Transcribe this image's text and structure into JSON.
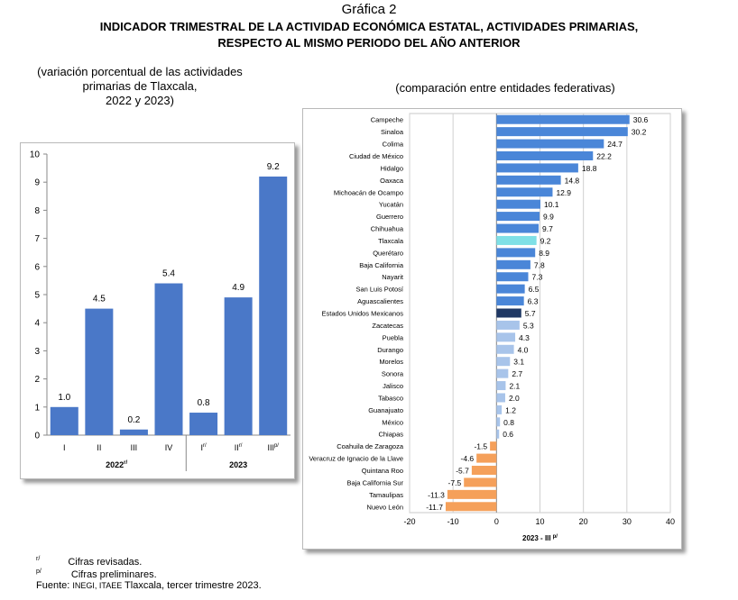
{
  "header": {
    "figure_label": "Gráfica 2",
    "title_line1": "INDICADOR TRIMESTRAL DE LA ACTIVIDAD ECONÓMICA ESTATAL, ACTIVIDADES PRIMARIAS,",
    "title_line2": "RESPECTO AL MISMO PERIODO DEL AÑO ANTERIOR"
  },
  "left_subtitle": [
    "(variación porcentual de las actividades",
    "primarias de Tlaxcala,",
    "2022 y 2023)"
  ],
  "right_subtitle": "(comparación entre entidades federativas)",
  "chart_data": [
    {
      "type": "bar",
      "categories": [
        "I",
        "II",
        "III",
        "IV",
        "I",
        "II",
        "III"
      ],
      "category_marks": [
        "",
        "",
        "",
        "",
        "r/",
        "r/",
        "p/"
      ],
      "groups": [
        {
          "label": "2022",
          "mark": "r/",
          "count": 4
        },
        {
          "label": "2023",
          "mark": "",
          "count": 3
        }
      ],
      "values": [
        1.0,
        4.5,
        0.2,
        5.4,
        0.8,
        4.9,
        9.2
      ],
      "data_labels": [
        "1.0",
        "4.5",
        "0.2",
        "5.4",
        "0.8",
        "4.9",
        "9.2"
      ],
      "ylim": [
        0,
        10
      ],
      "yticks": [
        "0",
        "1",
        "2",
        "3",
        "4",
        "5",
        "6",
        "7",
        "8",
        "9",
        "10"
      ],
      "grid": false,
      "bar_color": "#4a78c8"
    },
    {
      "type": "bar",
      "orientation": "horizontal",
      "categories": [
        "Campeche",
        "Sinaloa",
        "Colima",
        "Ciudad de México",
        "Hidalgo",
        "Oaxaca",
        "Michoacán de Ocampo",
        "Yucatán",
        "Guerrero",
        "Chihuahua",
        "Tlaxcala",
        "Querétaro",
        "Baja California",
        "Nayarit",
        "San Luis Potosí",
        "Aguascalientes",
        "Estados Unidos Mexicanos",
        "Zacatecas",
        "Puebla",
        "Durango",
        "Morelos",
        "Sonora",
        "Jalisco",
        "Tabasco",
        "Guanajuato",
        "México",
        "Chiapas",
        "Coahuila de Zaragoza",
        "Veracruz de Ignacio de la Llave",
        "Quintana Roo",
        "Baja California Sur",
        "Tamaulipas",
        "Nuevo León"
      ],
      "values": [
        30.6,
        30.2,
        24.7,
        22.2,
        18.8,
        14.8,
        12.9,
        10.1,
        9.9,
        9.7,
        9.2,
        8.9,
        7.8,
        7.3,
        6.5,
        6.3,
        5.7,
        5.3,
        4.3,
        4.0,
        3.1,
        2.7,
        2.1,
        2.0,
        1.2,
        0.8,
        0.6,
        -1.5,
        -4.6,
        -5.7,
        -7.5,
        -11.3,
        -11.7
      ],
      "data_labels": [
        "30.6",
        "30.2",
        "24.7",
        "22.2",
        "18.8",
        "14.8",
        "12.9",
        "10.1",
        "9.9",
        "9.7",
        "9.2",
        "8.9",
        "7.8",
        "7.3",
        "6.5",
        "6.3",
        "5.7",
        "5.3",
        "4.3",
        "4.0",
        "3.1",
        "2.7",
        "2.1",
        "2.0",
        "1.2",
        "0.8",
        "0.6",
        "-1.5",
        "-4.6",
        "-5.7",
        "-7.5",
        "-11.3",
        "-11.7"
      ],
      "xlim": [
        -20,
        40
      ],
      "xticks": [
        "-20",
        "-10",
        "0",
        "10",
        "20",
        "30",
        "40"
      ],
      "xlabel": "2023 - III",
      "xlabel_mark": "p/",
      "grid": true,
      "colors": {
        "positive": "#4a86d8",
        "positive_low": "#a8c4ea",
        "negative": "#f5a05a",
        "tlaxcala": "#7fe0e6",
        "national": "#1f3864"
      },
      "highlight": {
        "Tlaxcala": "tlaxcala",
        "Estados Unidos Mexicanos": "national"
      }
    }
  ],
  "footnotes": {
    "r_mark": "r/",
    "r_text": "Cifras revisadas.",
    "p_mark": "p/",
    "p_text": "Cifras preliminares.",
    "source_prefix": "Fuente: ",
    "source_orgs": "INEGI, ITAEE",
    "source_rest": " Tlaxcala, tercer trimestre 2023."
  }
}
